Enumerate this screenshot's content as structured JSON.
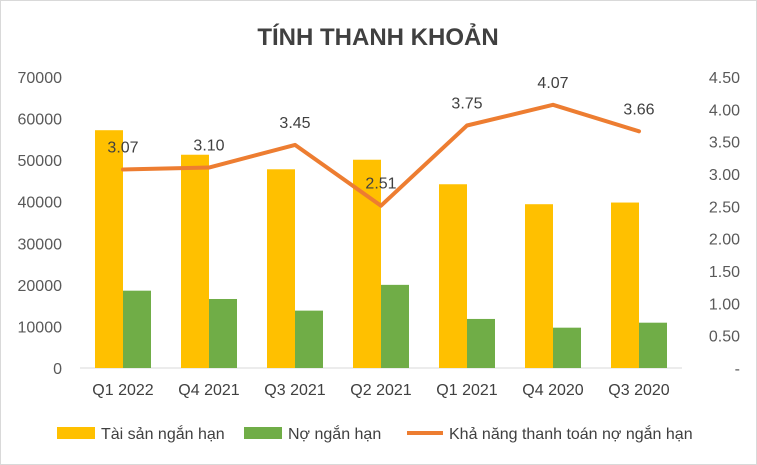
{
  "chart_data": {
    "type": "bar",
    "title": "TÍNH THANH KHOẢN",
    "categories": [
      "Q1 2022",
      "Q4 2021",
      "Q3 2021",
      "Q2 2021",
      "Q1 2021",
      "Q4 2020",
      "Q3 2020"
    ],
    "series": [
      {
        "name": "Tài sản ngắn hạn",
        "type": "bar",
        "axis": "left",
        "color": "#FFC000",
        "values": [
          57200,
          51300,
          47800,
          50100,
          44200,
          39400,
          39800
        ]
      },
      {
        "name": "Nợ ngắn hạn",
        "type": "bar",
        "axis": "left",
        "color": "#70AD47",
        "values": [
          18600,
          16600,
          13800,
          20000,
          11800,
          9700,
          10900
        ]
      },
      {
        "name": "Khả năng thanh toán nợ ngắn hạn",
        "type": "line",
        "axis": "right",
        "color": "#ED7D31",
        "values": [
          3.07,
          3.1,
          3.45,
          2.51,
          3.75,
          4.07,
          3.66
        ],
        "labels": [
          "3.07",
          "3.10",
          "3.45",
          "2.51",
          "3.75",
          "4.07",
          "3.66"
        ]
      }
    ],
    "y_left": {
      "min": 0,
      "max": 70000,
      "step": 10000,
      "ticks": [
        "0",
        "10000",
        "20000",
        "30000",
        "40000",
        "50000",
        "60000",
        "70000"
      ]
    },
    "y_right": {
      "min": 0,
      "max": 4.5,
      "step": 0.5,
      "ticks": [
        "-",
        "0.50",
        "1.00",
        "1.50",
        "2.00",
        "2.50",
        "3.00",
        "3.50",
        "4.00",
        "4.50"
      ]
    },
    "grid": false,
    "legend": "bottom"
  }
}
